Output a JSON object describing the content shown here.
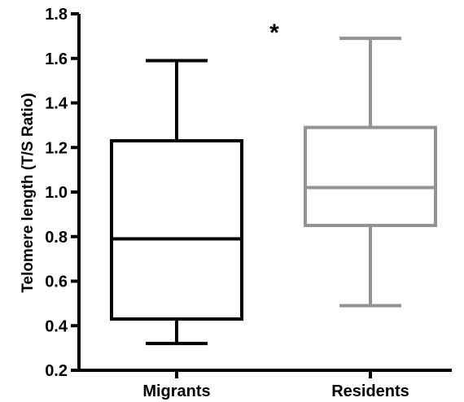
{
  "chart_data": {
    "type": "box",
    "ylabel": "Telomere length (T/S Ratio)",
    "ylim": [
      0.2,
      1.8
    ],
    "yticks": [
      0.2,
      0.4,
      0.6,
      0.8,
      1.0,
      1.2,
      1.4,
      1.6,
      1.8
    ],
    "ytick_labels": [
      "0.2",
      "0.4",
      "0.6",
      "0.8",
      "1.0",
      "1.2",
      "1.4",
      "1.6",
      "1.8"
    ],
    "categories": [
      "Migrants",
      "Residents"
    ],
    "series": [
      {
        "category": "Migrants",
        "min": 0.32,
        "q1": 0.43,
        "median": 0.79,
        "q3": 1.23,
        "max": 1.59,
        "color": "#000000"
      },
      {
        "category": "Residents",
        "min": 0.49,
        "q1": 0.85,
        "median": 1.02,
        "q3": 1.29,
        "max": 1.69,
        "color": "#939393"
      }
    ],
    "annotations": [
      {
        "text": "*"
      }
    ]
  }
}
